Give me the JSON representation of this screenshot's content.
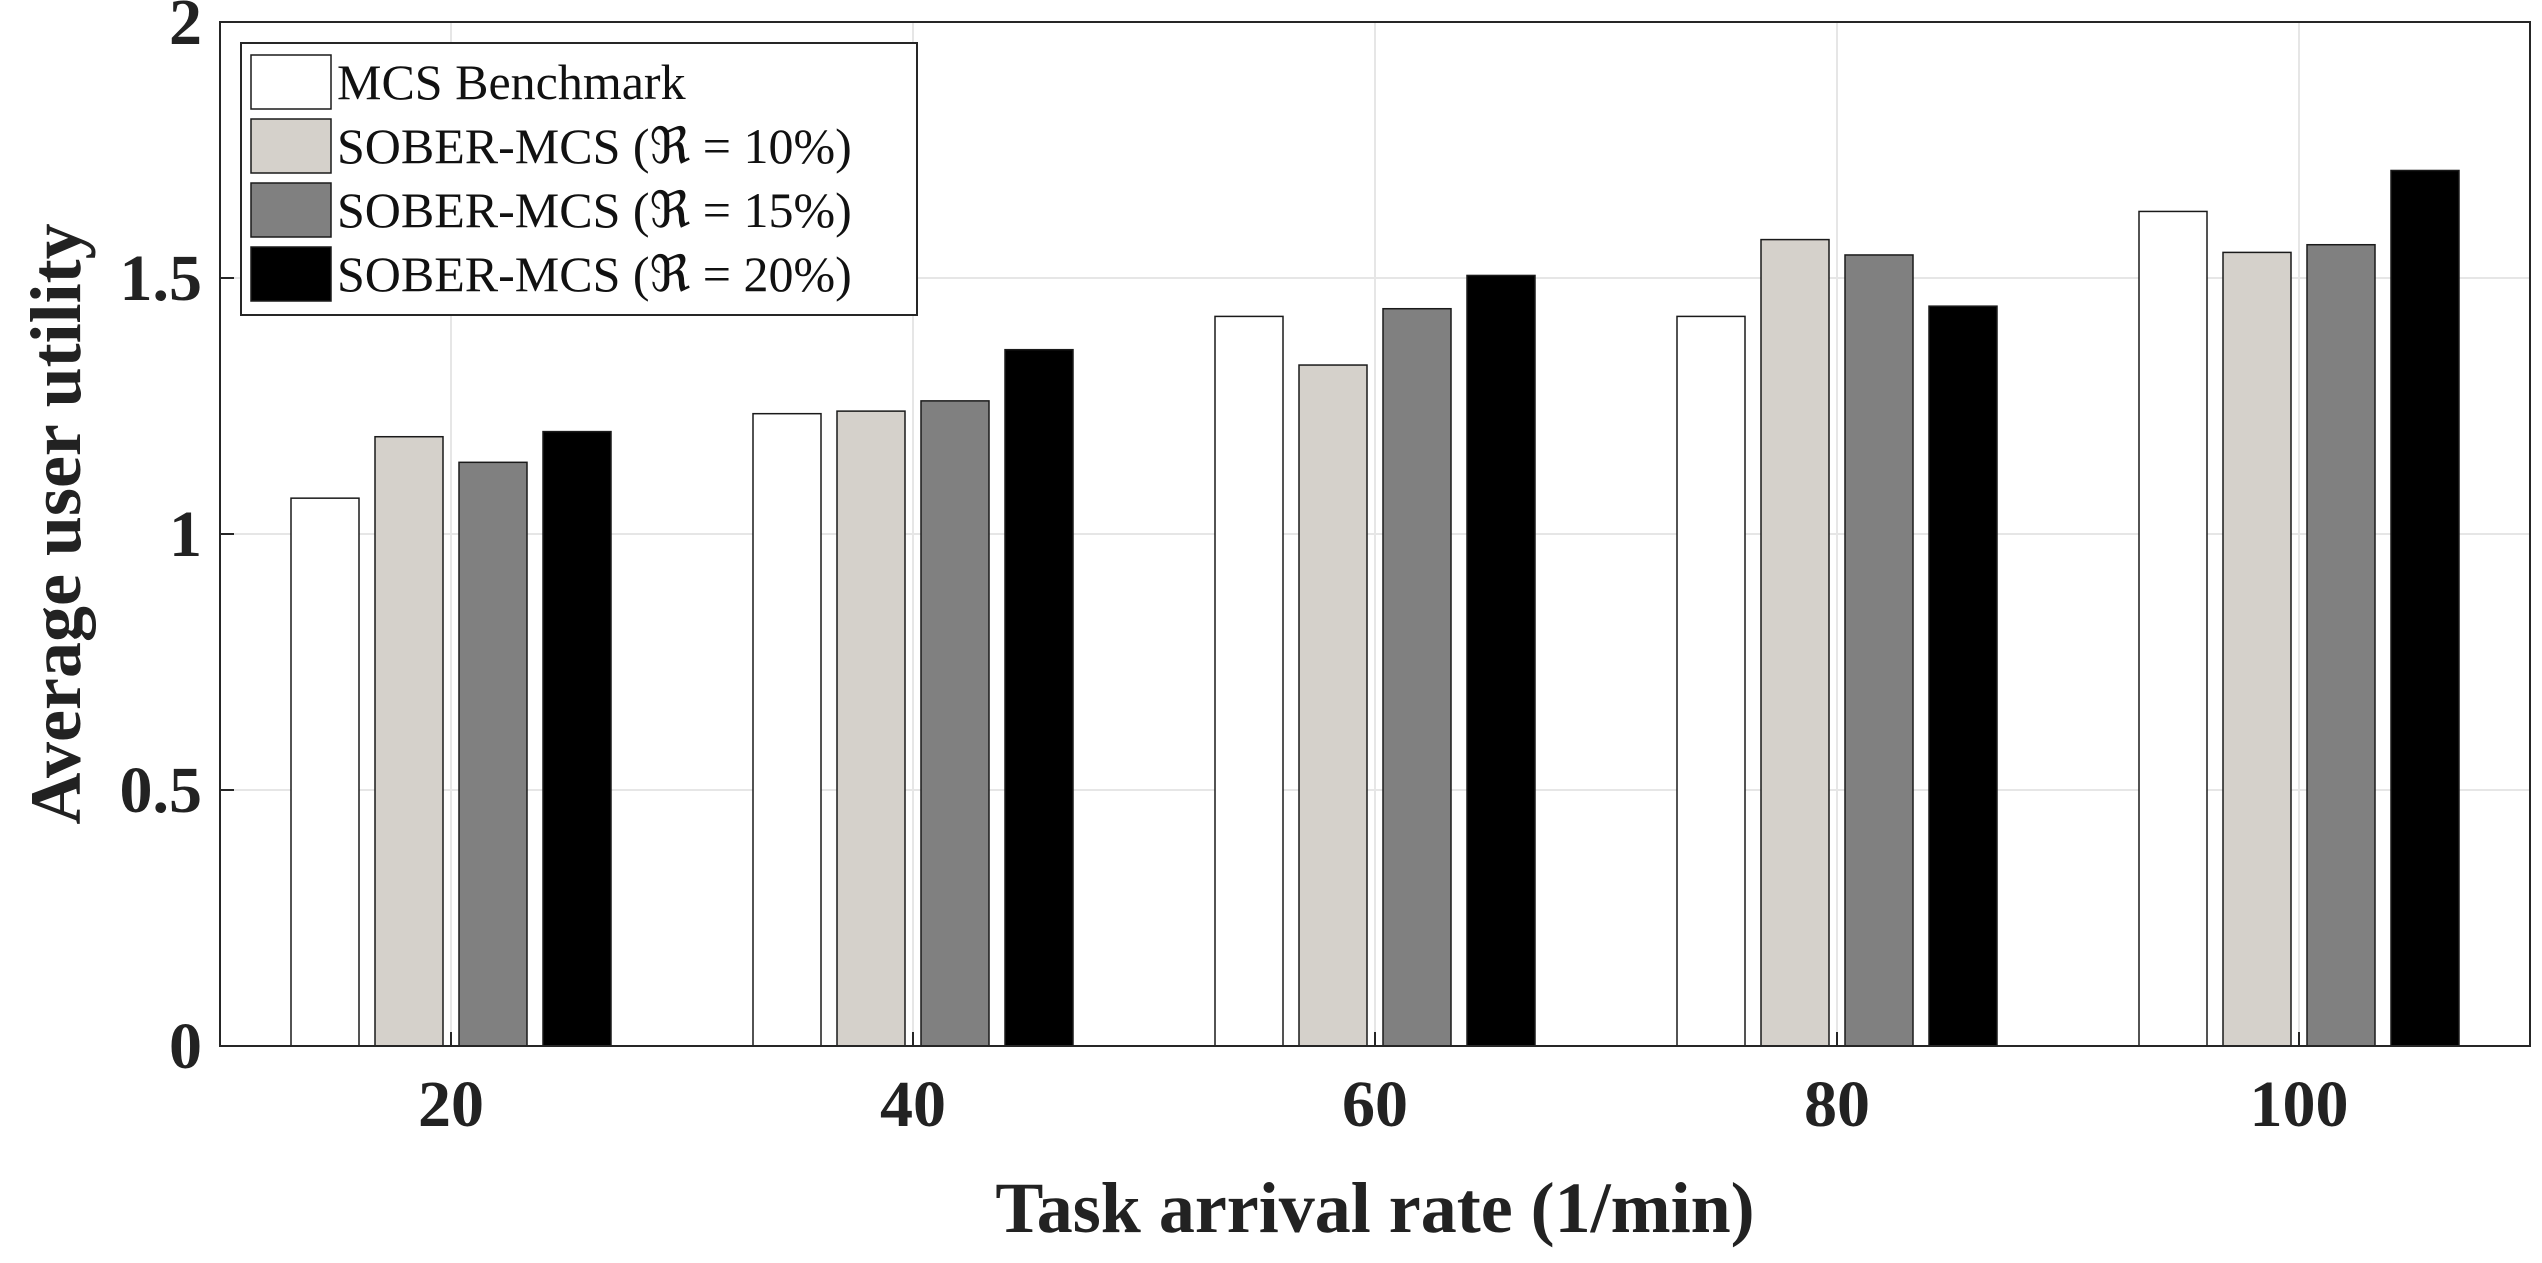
{
  "chart_data": {
    "type": "bar",
    "title": "",
    "xlabel": "Task arrival rate (1/min)",
    "ylabel": "Average user utility",
    "categories": [
      "20",
      "40",
      "60",
      "80",
      "100"
    ],
    "ylim": [
      0,
      2
    ],
    "yticks": [
      "0",
      "0.5",
      "1",
      "1.5",
      "2"
    ],
    "grid": true,
    "legend_position": "top-left",
    "series": [
      {
        "name": "MCS Benchmark",
        "color": "#ffffff",
        "values": [
          1.07,
          1.235,
          1.425,
          1.425,
          1.63
        ]
      },
      {
        "name": "SOBER-MCS (ℜ = 10%)",
        "color": "#d5d1cb",
        "values": [
          1.19,
          1.24,
          1.33,
          1.575,
          1.55
        ]
      },
      {
        "name": "SOBER-MCS (ℜ = 15%)",
        "color": "#808080",
        "values": [
          1.14,
          1.26,
          1.44,
          1.545,
          1.565
        ]
      },
      {
        "name": "SOBER-MCS (ℜ = 20%)",
        "color": "#000000",
        "values": [
          1.2,
          1.36,
          1.505,
          1.445,
          1.71
        ]
      }
    ]
  }
}
